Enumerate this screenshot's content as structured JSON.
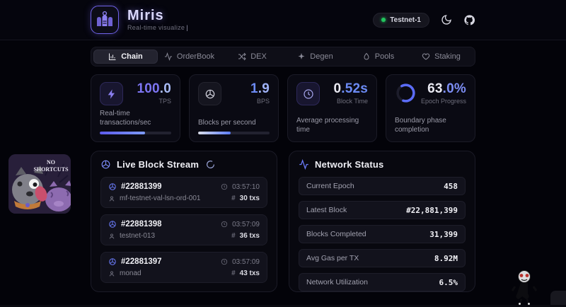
{
  "header": {
    "title": "Miris",
    "subtitle": "Real-time visualize",
    "cursor": "|",
    "network_badge": "Testnet-1"
  },
  "tabs": [
    {
      "label": "Chain",
      "active": true
    },
    {
      "label": "OrderBook",
      "active": false
    },
    {
      "label": "DEX",
      "active": false
    },
    {
      "label": "Degen",
      "active": false
    },
    {
      "label": "Pools",
      "active": false
    },
    {
      "label": "Staking",
      "active": false
    }
  ],
  "stat_cards": [
    {
      "value_main": "100",
      "value_sub": ".0",
      "unit": "TPS",
      "description": "Real-time transactions/sec",
      "progress_pct": 63
    },
    {
      "value_main": "1",
      "value_sub": ".9",
      "unit": "BPS",
      "description": "Blocks per second",
      "progress_pct": 46
    },
    {
      "value_main": "0",
      "value_sub": ".52s",
      "unit": "Block Time",
      "description": "Average processing time"
    },
    {
      "value_main": "63",
      "value_sub": ".0%",
      "unit": "Epoch Progress",
      "description": "Boundary phase completion",
      "ring_pct": 63
    }
  ],
  "live_block_stream": {
    "title": "Live Block Stream",
    "blocks": [
      {
        "number": "#22881399",
        "validator": "mf-testnet-val-lsn-ord-001",
        "time": "03:57:10",
        "hash_symbol": "#",
        "txs": "30 txs"
      },
      {
        "number": "#22881398",
        "validator": "testnet-013",
        "time": "03:57:09",
        "hash_symbol": "#",
        "txs": "36 txs"
      },
      {
        "number": "#22881397",
        "validator": "monad",
        "time": "03:57:09",
        "hash_symbol": "#",
        "txs": "43 txs"
      }
    ]
  },
  "network_status": {
    "title": "Network Status",
    "rows": [
      {
        "label": "Current Epoch",
        "value": "458"
      },
      {
        "label": "Latest Block",
        "value": "#22,881,399"
      },
      {
        "label": "Blocks Completed",
        "value": "31,399"
      },
      {
        "label": "Avg Gas per TX",
        "value": "8.92M"
      },
      {
        "label": "Network Utilization",
        "value": "6.5%"
      }
    ]
  },
  "stickers": {
    "no_shortcuts_line1": "NO",
    "no_shortcuts_line2": "SHORTCUTS"
  },
  "colors": {
    "accent_purple": "#8b7ff0",
    "accent_blue": "#5b7cfa",
    "value_purple": "#7d75f2",
    "value_light_blue": "#a9bcf5",
    "value_blue": "#6c8bf5",
    "white": "#e9e9f2",
    "green": "#22c55e"
  }
}
